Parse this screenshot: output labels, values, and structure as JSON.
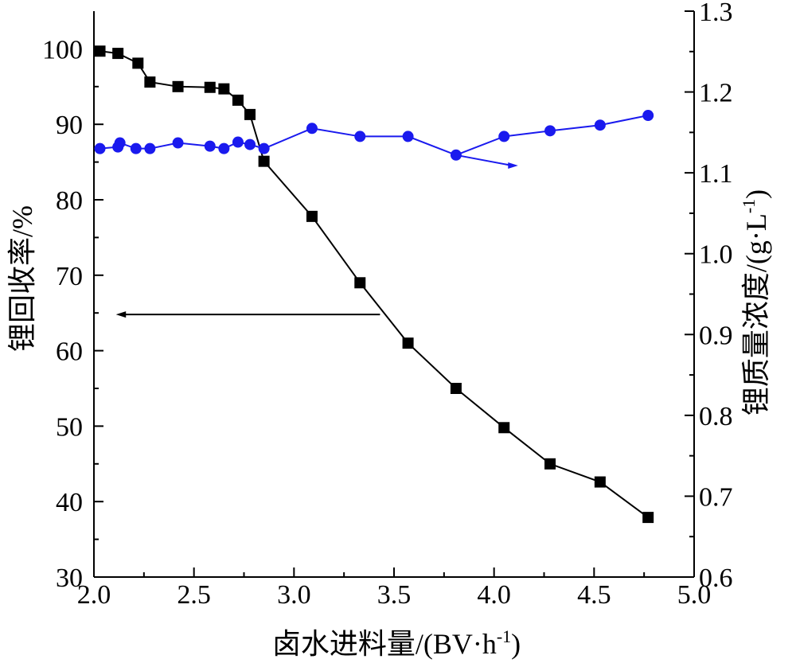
{
  "chart_data": {
    "type": "line",
    "xlabel": "卤水进料量/(BV·h",
    "xlabel_sup": "-1",
    "xlabel_end": ")",
    "ylabel_left": "锂回收率/%",
    "ylabel_right": "锂质量浓度/(g·L",
    "ylabel_right_sup": "-1",
    "ylabel_right_end": ")",
    "xlim": [
      2.0,
      5.0
    ],
    "ylim_left": [
      30,
      105
    ],
    "ylim_right": [
      0.6,
      1.3
    ],
    "x_ticks": [
      "2.0",
      "2.5",
      "3.0",
      "3.5",
      "4.0",
      "4.5",
      "5.0"
    ],
    "y_left_ticks": [
      "30",
      "40",
      "50",
      "60",
      "70",
      "80",
      "90",
      "100"
    ],
    "y_right_ticks": [
      "0.6",
      "0.7",
      "0.8",
      "0.9",
      "1.0",
      "1.1",
      "1.2",
      "1.3"
    ],
    "grid": false,
    "series": [
      {
        "axis": "left",
        "marker": "square",
        "color": "#000000",
        "x": [
          2.03,
          2.12,
          2.22,
          2.28,
          2.42,
          2.58,
          2.65,
          2.72,
          2.78,
          2.85,
          3.09,
          3.33,
          3.57,
          3.81,
          4.05,
          4.28,
          4.53,
          4.77
        ],
        "y": [
          99.7,
          99.4,
          98.1,
          95.6,
          95.0,
          94.9,
          94.7,
          93.2,
          91.3,
          85.1,
          77.8,
          69.0,
          61.0,
          55.0,
          49.8,
          45.0,
          42.6,
          37.9
        ]
      },
      {
        "axis": "right",
        "marker": "circle",
        "color": "#1a1aee",
        "x": [
          2.03,
          2.12,
          2.13,
          2.21,
          2.28,
          2.42,
          2.58,
          2.65,
          2.72,
          2.78,
          2.85,
          3.09,
          3.33,
          3.57,
          3.81,
          4.05,
          4.28,
          4.53,
          4.77
        ],
        "y": [
          1.13,
          1.132,
          1.137,
          1.13,
          1.13,
          1.137,
          1.133,
          1.13,
          1.138,
          1.135,
          1.13,
          1.155,
          1.145,
          1.145,
          1.122,
          1.145,
          1.152,
          1.159,
          1.171
        ]
      }
    ],
    "annotations": [
      {
        "type": "arrow",
        "points_to": "left-axis",
        "color": "#000000"
      },
      {
        "type": "arrow",
        "points_to": "right-axis",
        "color": "#1a1aee"
      }
    ]
  }
}
